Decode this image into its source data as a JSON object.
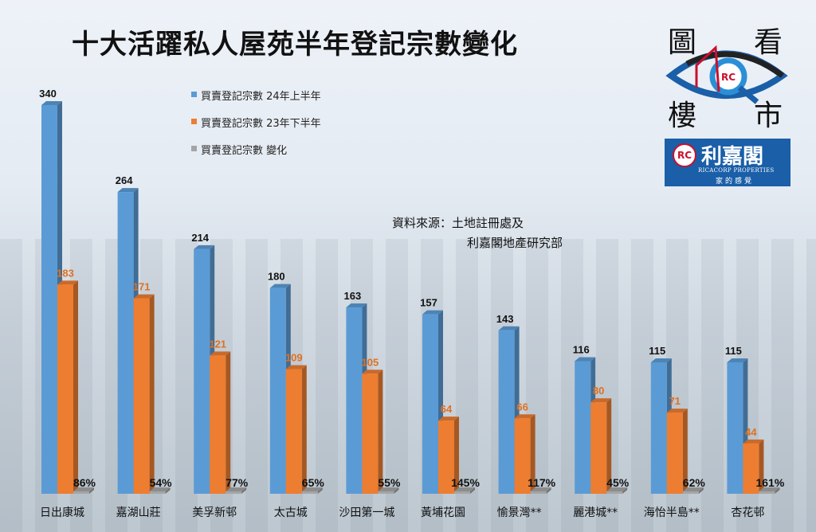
{
  "chart_data": {
    "type": "bar",
    "title": "十大活躍私人屋苑半年登記宗數變化",
    "categories": [
      "日出康城",
      "嘉湖山莊",
      "美孚新邨",
      "太古城",
      "沙田第一城",
      "黃埔花園",
      "愉景灣**",
      "麗港城**",
      "海怡半島**",
      "杏花邨"
    ],
    "series": [
      {
        "name": "買賣登記宗數 24年上半年",
        "color": "#5b9bd5",
        "values": [
          340,
          264,
          214,
          180,
          163,
          157,
          143,
          116,
          115,
          115
        ]
      },
      {
        "name": "買賣登記宗數 23年下半年",
        "color": "#ed7d31",
        "values": [
          183,
          171,
          121,
          109,
          105,
          64,
          66,
          80,
          71,
          44
        ]
      },
      {
        "name": "買賣登記宗數 變化",
        "color": "#a5a5a5",
        "values": [
          "86%",
          "54%",
          "77%",
          "65%",
          "55%",
          "145%",
          "117%",
          "45%",
          "62%",
          "161%"
        ]
      }
    ],
    "ylim": [
      0,
      340
    ],
    "grid": false,
    "legend": "top-left",
    "annotation_line1": "資料來源：土地註冊處及",
    "annotation_line2": "利嘉閣地產研究部"
  },
  "logo": {
    "chars": [
      "圖",
      "看",
      "樓",
      "市"
    ],
    "rc": "RC",
    "brand": "利嘉閣",
    "brand_en": "RICACORP PROPERTIES",
    "slogan": "家的感覺"
  }
}
